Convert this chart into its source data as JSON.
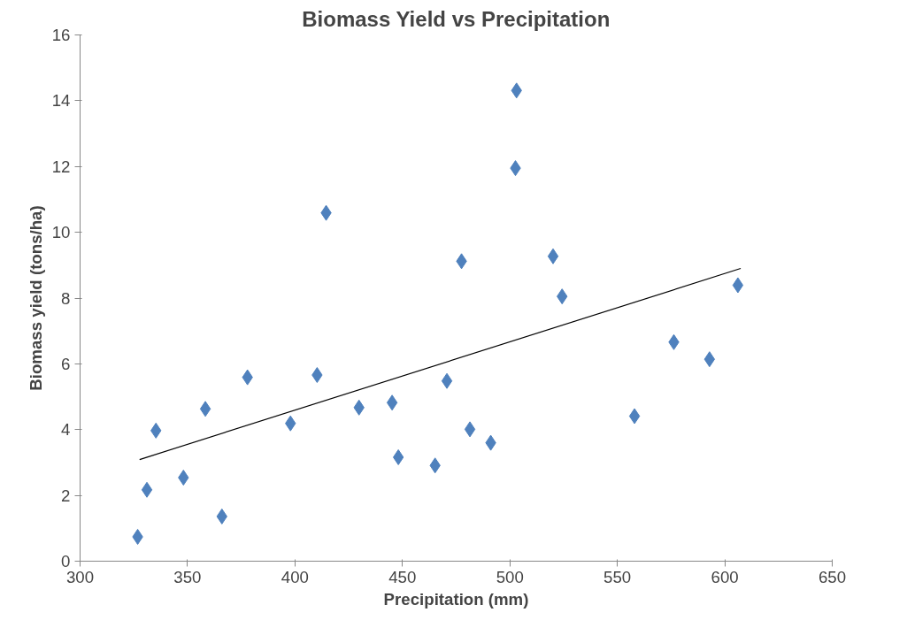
{
  "chart_data": {
    "type": "scatter",
    "title": "Biomass Yield vs Precipitation",
    "xlabel": "Precipitation (mm)",
    "ylabel": "Biomass yield (tons/ha)",
    "xlim": [
      300,
      650
    ],
    "xticks": [
      300,
      350,
      400,
      450,
      500,
      550,
      600,
      650
    ],
    "ylim": [
      0,
      16
    ],
    "yticks": [
      0,
      2,
      4,
      6,
      8,
      10,
      12,
      14,
      16
    ],
    "grid": false,
    "series": [
      {
        "marker": "diamond",
        "color": "#4f81bd",
        "x": [
          326.8,
          331.1,
          335.3,
          348.1,
          358.3,
          366,
          377.9,
          397.9,
          410.3,
          414.5,
          429.8,
          445.2,
          448.1,
          465.2,
          470.7,
          477.5,
          481.4,
          491.1,
          502.6,
          503.1,
          520.1,
          524.3,
          558,
          576.3,
          592.9,
          606.1
        ],
        "values": [
          0.74,
          2.17,
          3.97,
          2.54,
          4.63,
          1.36,
          5.59,
          4.19,
          5.66,
          10.59,
          4.67,
          4.82,
          3.16,
          2.91,
          5.48,
          9.12,
          4.01,
          3.6,
          11.95,
          14.31,
          9.27,
          8.05,
          4.41,
          6.66,
          6.14,
          8.39
        ]
      },
      {
        "type": "line",
        "color": "#000000",
        "x": [
          327.7,
          607.4
        ],
        "values": [
          3.09,
          8.9
        ]
      }
    ]
  }
}
